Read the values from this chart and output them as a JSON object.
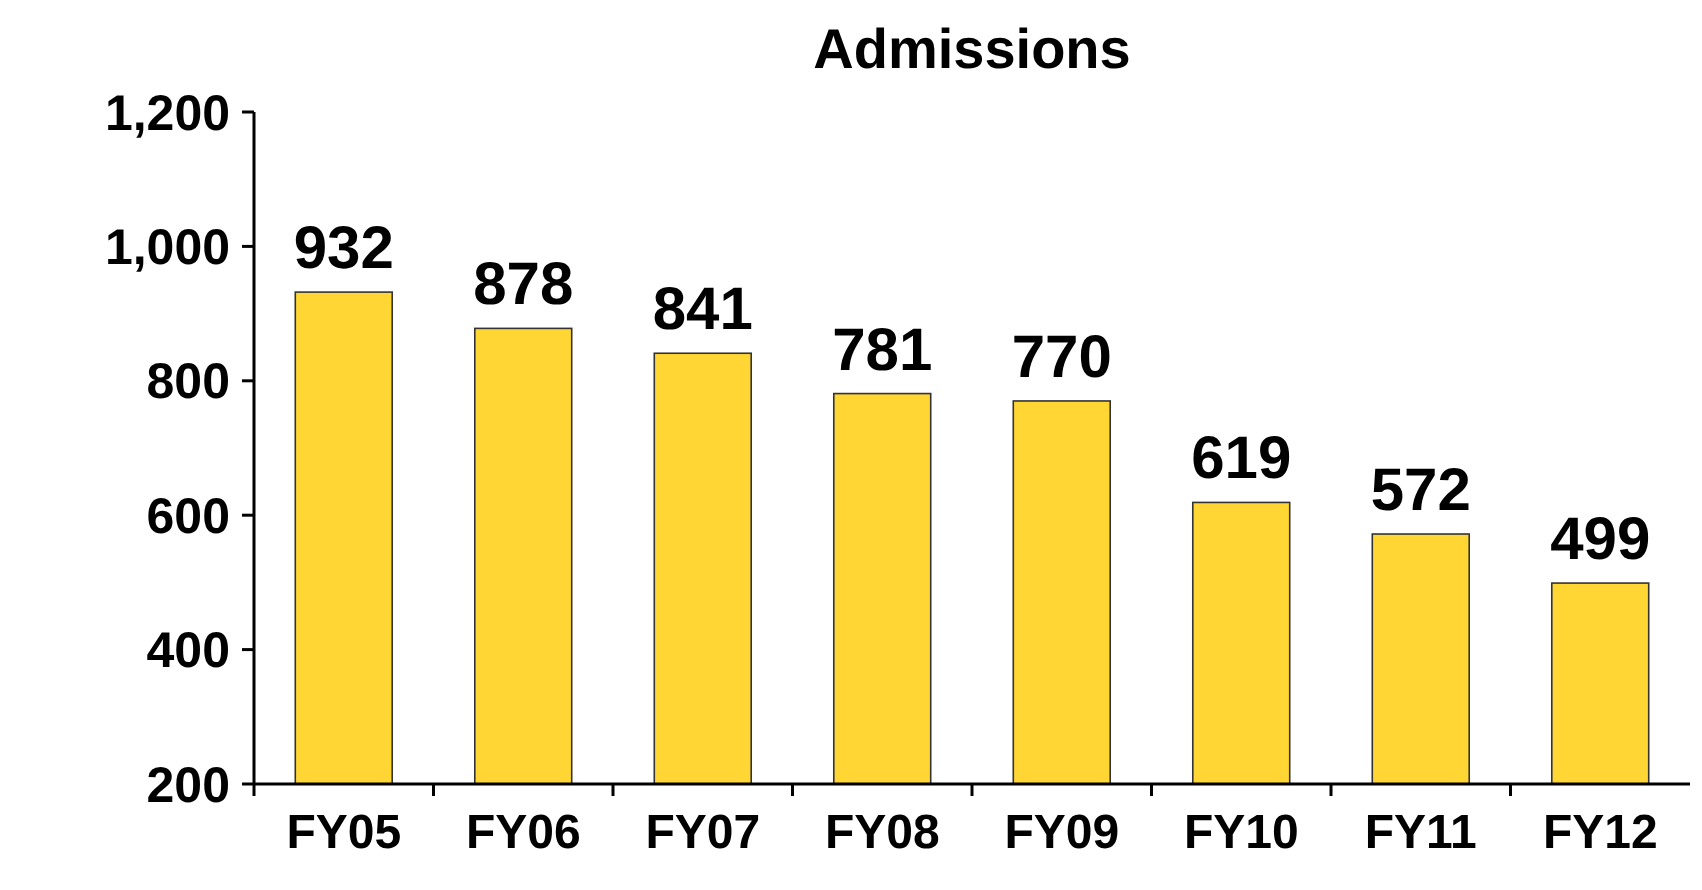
{
  "chart_data": {
    "type": "bar",
    "title": "Admissions",
    "categories": [
      "FY05",
      "FY06",
      "FY07",
      "FY08",
      "FY09",
      "FY10",
      "FY11",
      "FY12"
    ],
    "values": [
      932,
      878,
      841,
      781,
      770,
      619,
      572,
      499
    ],
    "color": "#ffd633",
    "ylim": [
      200,
      1200
    ],
    "yticks": [
      200,
      400,
      600,
      800,
      {
        "value": 1000,
        "label": "1,000"
      },
      {
        "value": 1200,
        "label": "1,200"
      }
    ],
    "data_labels": true
  }
}
